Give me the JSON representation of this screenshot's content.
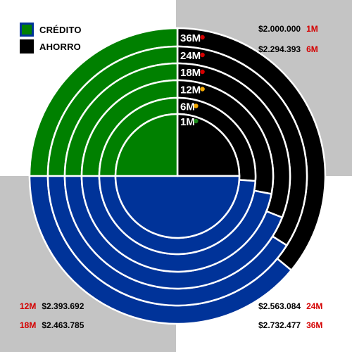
{
  "legend": {
    "credit_label": "CRÉDITO",
    "savings_label": "AHORRO",
    "credit_color": "#003399",
    "savings_color": "#000000",
    "credit_swatch_color": "#008000"
  },
  "colors": {
    "credit": "#003399",
    "savings": "#000000",
    "credit_at_1m": "#008000",
    "ring_border": "#ffffff",
    "term_text": "#d40000",
    "dot_red": "#d40000",
    "dot_orange": "#f5a800",
    "dot_green": "#1a8a1a"
  },
  "labels": {
    "tr1": {
      "amount": "$2.000.000",
      "term": "1M"
    },
    "tr2": {
      "amount": "$2.294.393",
      "term": "6M"
    },
    "bl1": {
      "term": "12M",
      "amount": "$2.393.692"
    },
    "bl2": {
      "term": "18M",
      "amount": "$2.463.785"
    },
    "br1": {
      "amount": "$2.563.084",
      "term": "24M"
    },
    "br2": {
      "amount": "$2.732.477",
      "term": "36M"
    }
  },
  "chart_data": {
    "type": "radial-bar",
    "series": [
      {
        "name": "CRÉDITO"
      },
      {
        "name": "AHORRO"
      }
    ],
    "rings": [
      {
        "label": "1M",
        "indicator": "green",
        "credit": 0.75,
        "savings": 0.25
      },
      {
        "label": "6M",
        "indicator": "orange",
        "credit": 0.74,
        "savings": 0.26
      },
      {
        "label": "12M",
        "indicator": "orange",
        "credit": 0.72,
        "savings": 0.28
      },
      {
        "label": "18M",
        "indicator": "red",
        "credit": 0.69,
        "savings": 0.31
      },
      {
        "label": "24M",
        "indicator": "red",
        "credit": 0.66,
        "savings": 0.34
      },
      {
        "label": "36M",
        "indicator": "red",
        "credit": 0.64,
        "savings": 0.36
      }
    ]
  }
}
